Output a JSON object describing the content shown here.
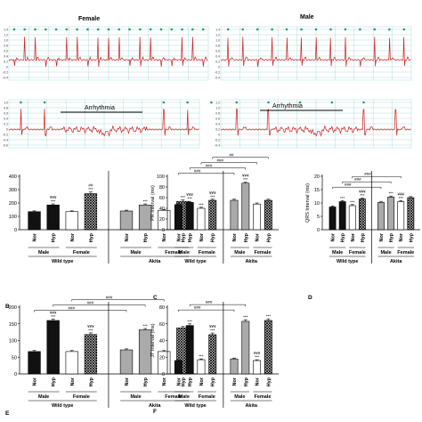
{
  "ecg": {
    "female_label": "Female",
    "male_label": "Male",
    "arrhythmia_label": "Arrhythmia",
    "panels": [
      {
        "id": "female-normal",
        "ticks": [
          "1.4",
          "1.2",
          "1.0",
          "0.8",
          "0.6",
          "0.4",
          "0.2",
          "0",
          "-0.2",
          "-0.4"
        ]
      },
      {
        "id": "male-normal",
        "ticks": [
          "1.4",
          "1.2",
          "1.0",
          "0.8",
          "0.6",
          "0.4",
          "0.2",
          "0",
          "-0.2",
          "-0.4"
        ]
      },
      {
        "id": "female-arrhythmia",
        "ticks": [
          "1.0",
          "0.8",
          "0.6",
          "0.4",
          "0.2",
          "0",
          "-0.2",
          "-0.4",
          "-0.6"
        ]
      },
      {
        "id": "male-arrhythmia",
        "ticks": [
          "1.2",
          "1.0",
          "0.8",
          "0.6",
          "0.4",
          "0.2",
          "0",
          "-0.2",
          "-0.4"
        ]
      }
    ],
    "colors": {
      "trace": "#cc1f1f",
      "grid": "#9fd3d3",
      "marker": "#1f9e63"
    }
  },
  "groups": {
    "categories": [
      "Nor",
      "Hyp",
      "Nor",
      "Hyp",
      "Nor",
      "Hyp",
      "Nor",
      "Hyp"
    ],
    "sex": [
      "Male",
      "Female",
      "Male",
      "Female"
    ],
    "strain": [
      "Wild type",
      "Akita"
    ]
  },
  "chart_data": [
    {
      "type": "bar",
      "panel_label": "B",
      "ylabel": "",
      "yticks": [
        "0",
        "100",
        "200",
        "300",
        "400"
      ],
      "ylim": [
        0,
        400
      ],
      "values": [
        135,
        185,
        135,
        270,
        140,
        185,
        145,
        212
      ],
      "errors": [
        6,
        8,
        6,
        12,
        6,
        8,
        6,
        10
      ],
      "star_labels": [
        "",
        "***",
        "",
        "***",
        "",
        "***",
        "",
        "***"
      ],
      "sym_labels": [
        "",
        "¥¥¥",
        "",
        "##",
        "",
        "",
        "",
        ""
      ],
      "bracket_labels": []
    },
    {
      "type": "bar",
      "panel_label": "C",
      "ylabel": "PR Interval (ms)",
      "yticks": [
        "0",
        "20",
        "40",
        "60",
        "80",
        "100"
      ],
      "ylim": [
        0,
        100
      ],
      "values": [
        47,
        51,
        40,
        55,
        55,
        87,
        48,
        55
      ],
      "errors": [
        2,
        2,
        2,
        2,
        2,
        2,
        2,
        2
      ],
      "star_labels": [
        "",
        "***",
        "***",
        "***",
        "",
        "***",
        "",
        ""
      ],
      "sym_labels": [
        "",
        "¥¥¥",
        "",
        "¥¥¥",
        "",
        "¥¥¥",
        "",
        ""
      ],
      "bracket_labels": [
        "###",
        "###",
        "###",
        "##"
      ]
    },
    {
      "type": "bar",
      "panel_label": "D",
      "ylabel": "QRS Interval (ms)",
      "yticks": [
        "0",
        "5",
        "10",
        "15",
        "20"
      ],
      "ylim": [
        0,
        20
      ],
      "values": [
        8.5,
        10.5,
        9,
        11.5,
        10.2,
        12.2,
        10.5,
        12
      ],
      "errors": [
        0.4,
        0.4,
        0.4,
        0.4,
        0.4,
        0.4,
        0.4,
        0.4
      ],
      "star_labels": [
        "",
        "***",
        "***",
        "***",
        "",
        "***",
        "***",
        ""
      ],
      "sym_labels": [
        "",
        "",
        "",
        "¥¥¥",
        "",
        "",
        "¥¥¥",
        ""
      ],
      "bracket_labels": [
        "###",
        "###",
        "###"
      ]
    },
    {
      "type": "bar",
      "panel_label": "E",
      "ylabel": "",
      "yticks": [
        "0",
        "50",
        "100",
        "150",
        "200"
      ],
      "ylim": [
        0,
        200
      ],
      "values": [
        67,
        160,
        67,
        118,
        72,
        132,
        67,
        138
      ],
      "errors": [
        3,
        4,
        3,
        5,
        3,
        4,
        3,
        4
      ],
      "star_labels": [
        "",
        "***",
        "",
        "***",
        "",
        "***",
        "",
        ""
      ],
      "sym_labels": [
        "",
        "¥¥¥",
        "",
        "¥¥¥",
        "",
        "",
        "",
        ""
      ],
      "bracket_labels": [
        "###",
        "###",
        "###"
      ]
    },
    {
      "type": "bar",
      "panel_label": "F",
      "ylabel": "JT Interval (ms)",
      "yticks": [
        "0",
        "20",
        "40",
        "60",
        "80"
      ],
      "ylim": [
        0,
        80
      ],
      "values": [
        16,
        58,
        17,
        47,
        18,
        63,
        16,
        64
      ],
      "errors": [
        1,
        2,
        1,
        2,
        1,
        2,
        1,
        2
      ],
      "star_labels": [
        "",
        "***",
        "***",
        "***",
        "",
        "***",
        "***",
        "***"
      ],
      "sym_labels": [
        "",
        "",
        "",
        "¥¥¥",
        "",
        "",
        "¥¥¥",
        ""
      ],
      "bracket_labels": [
        "###",
        "###"
      ]
    }
  ]
}
